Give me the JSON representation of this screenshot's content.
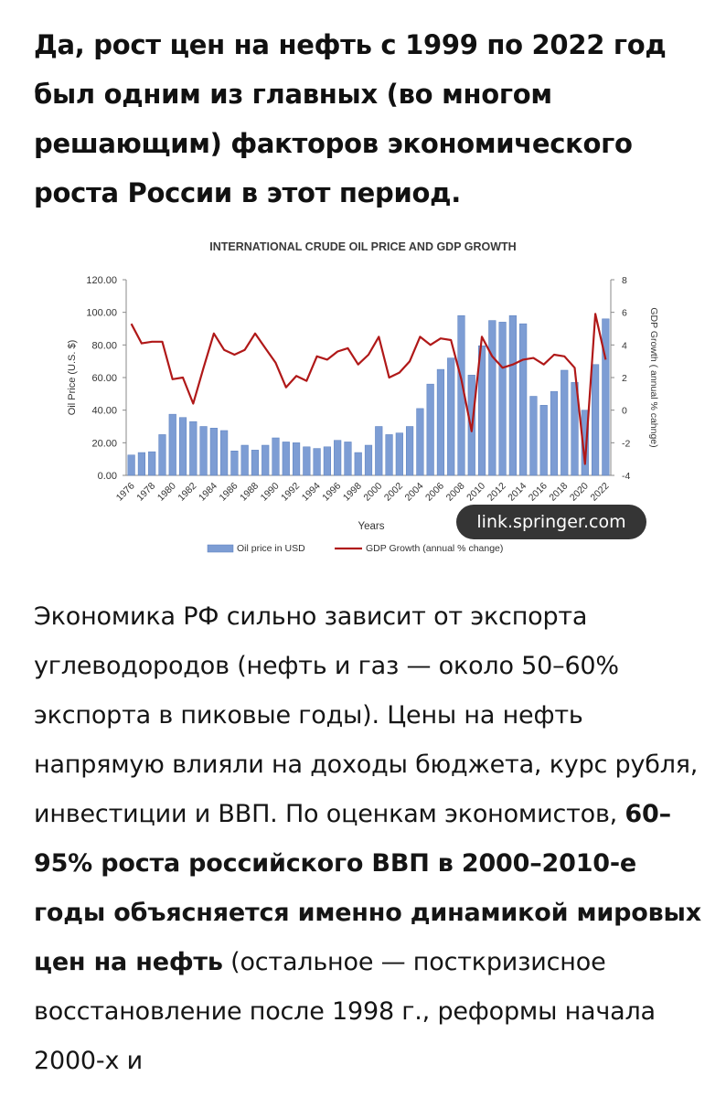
{
  "post": {
    "heading": "Да, рост цен на нефть с 1999 по 2022 год был одним из главных (во многом решающим) факторов экономического роста России в этот период.",
    "paragraph_intro": "Экономика РФ сильно зависит от экспорта углеводородов (нефть и газ — около 50–60% экспорта в пиковые годы). Цены на нефть напрямую влияли на доходы бюджета, курс рубля, инвестиции и ВВП. По оценкам экономистов, ",
    "paragraph_bold": "60–95% роста российского ВВП в 2000–2010-е годы объясняется именно динамикой мировых цен на нефть",
    "paragraph_outro": " (остальное — посткризисное восстановление после 1998 г., реформы начала 2000-х и",
    "image_source": "link.springer.com"
  },
  "colors": {
    "bar": "#7d9dd4",
    "bar_stroke": "#5a7fbe",
    "line": "#b01818",
    "axis": "#888888",
    "text": "#333333",
    "accent": "#111111"
  },
  "chart_data": {
    "type": "bar+line",
    "title": "INTERNATIONAL CRUDE OIL PRICE AND GDP GROWTH",
    "xlabel": "Years",
    "ylabel_left": "Oil Price (U.S. $)",
    "ylabel_right": "GDP Growth ( annual % cahnge)",
    "ylim_left": [
      0,
      120
    ],
    "ylim_right": [
      -4,
      8
    ],
    "y_ticks_left": [
      "0.00",
      "20.00",
      "40.00",
      "60.00",
      "80.00",
      "100.00",
      "120.00"
    ],
    "y_ticks_right": [
      "-4",
      "-2",
      "0",
      "2",
      "4",
      "6",
      "8"
    ],
    "x_tick_labels": [
      "1976",
      "1978",
      "1980",
      "1982",
      "1984",
      "1986",
      "1988",
      "1990",
      "1992",
      "1994",
      "1996",
      "1998",
      "2000",
      "2002",
      "2004",
      "2006",
      "2008",
      "2010",
      "2012",
      "2014",
      "2016",
      "2018",
      "2020",
      "2022"
    ],
    "categories": [
      1976,
      1977,
      1978,
      1979,
      1980,
      1981,
      1982,
      1983,
      1984,
      1985,
      1986,
      1987,
      1988,
      1989,
      1990,
      1991,
      1992,
      1993,
      1994,
      1995,
      1996,
      1997,
      1998,
      1999,
      2000,
      2001,
      2002,
      2003,
      2004,
      2005,
      2006,
      2007,
      2008,
      2009,
      2010,
      2011,
      2012,
      2013,
      2014,
      2015,
      2016,
      2017,
      2018,
      2019,
      2020,
      2021,
      2022
    ],
    "series": [
      {
        "name": "Oil price in USD",
        "type": "bar",
        "axis": "left",
        "values": [
          12.5,
          14,
          14.5,
          25,
          37.5,
          35.5,
          33,
          30,
          29,
          27.5,
          15,
          18.5,
          15.5,
          18.5,
          23,
          20.5,
          20,
          17.5,
          16.5,
          17.5,
          21.5,
          20.5,
          14,
          18.5,
          30,
          25,
          26,
          30,
          41,
          56,
          65,
          72,
          98,
          61.5,
          79.5,
          95,
          94,
          98,
          93,
          48.5,
          43,
          51.5,
          64.5,
          57,
          40,
          68,
          96
        ]
      },
      {
        "name": "GDP Growth (annual % change)",
        "type": "line",
        "axis": "right",
        "values": [
          5.3,
          4.1,
          4.2,
          4.2,
          1.9,
          2,
          0.4,
          2.6,
          4.7,
          3.7,
          3.4,
          3.7,
          4.7,
          3.8,
          2.9,
          1.4,
          2.1,
          1.8,
          3.3,
          3.1,
          3.6,
          3.8,
          2.8,
          3.4,
          4.5,
          2,
          2.3,
          3,
          4.5,
          4,
          4.4,
          4.3,
          1.9,
          -1.3,
          4.5,
          3.3,
          2.6,
          2.8,
          3.1,
          3.2,
          2.8,
          3.4,
          3.3,
          2.6,
          -3.3,
          5.9,
          3.1
        ]
      }
    ],
    "legend": "bottom"
  }
}
